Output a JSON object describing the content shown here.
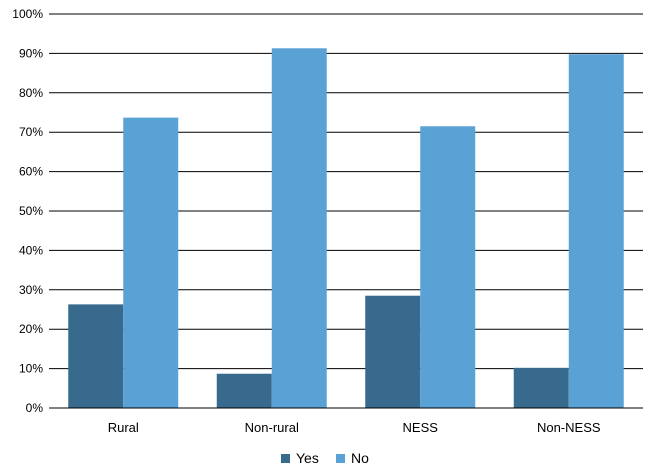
{
  "chart_data": {
    "type": "bar",
    "title": "",
    "xlabel": "",
    "ylabel": "",
    "categories": [
      "Rural",
      "Non-rural",
      "NESS",
      "Non-NESS"
    ],
    "series": [
      {
        "name": "Yes",
        "values": [
          26.3,
          8.7,
          28.5,
          10.2
        ],
        "color": "#376a8c"
      },
      {
        "name": "No",
        "values": [
          73.7,
          91.3,
          71.5,
          89.8
        ],
        "color": "#5aa2d6"
      }
    ],
    "ylim": [
      0,
      100
    ],
    "yticks": [
      0,
      10,
      20,
      30,
      40,
      50,
      60,
      70,
      80,
      90,
      100
    ],
    "ytick_suffix": "%",
    "grid": true,
    "legend_position": "bottom-center"
  }
}
